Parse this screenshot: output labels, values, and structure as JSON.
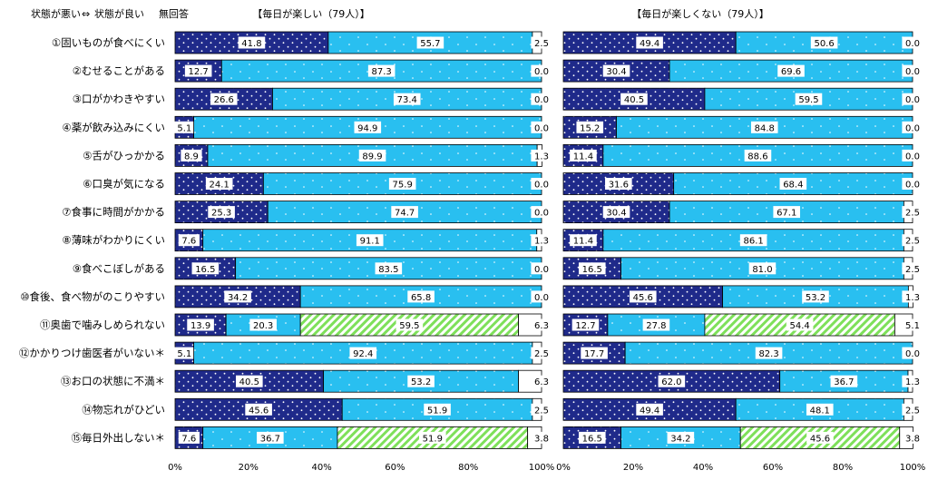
{
  "legend": {
    "label_bad": "状態が悪い",
    "arrow": "⇔",
    "label_good": "状態が良い",
    "label_noanswer": "無回答"
  },
  "colors": {
    "bad": "#1f2a8a",
    "good": "#29bff0",
    "third": "#7ee05a",
    "noanswer": "#ffffff",
    "border": "#000000"
  },
  "categories": [
    "①固いものが食べにくい",
    "②むせることがある",
    "③口がかわきやすい",
    "④薬が飲み込みにくい",
    "⑤舌がひっかかる",
    "⑥口臭が気になる",
    "⑦食事に時間がかかる",
    "⑧薄味がわかりにくい",
    "⑨食べこぼしがある",
    "⑩食後、食べ物がのこりやすい",
    "⑪奥歯で噛みしめられない",
    "⑫かかりつけ歯医者がいない＊",
    "⑬お口の状態に不満＊",
    "⑭物忘れがひどい",
    "⑮毎日外出しない＊"
  ],
  "chart_data": [
    {
      "type": "bar",
      "orientation": "horizontal",
      "stacked": true,
      "title": "【毎日が楽しい（79人）】",
      "xlim": [
        0,
        100
      ],
      "xticks": [
        "0%",
        "20%",
        "40%",
        "60%",
        "80%",
        "100%"
      ],
      "rows": [
        {
          "values": [
            41.8,
            55.7,
            2.5
          ],
          "labels": [
            "41.8",
            "55.7",
            "2.5"
          ]
        },
        {
          "values": [
            12.7,
            87.3,
            0.0
          ],
          "labels": [
            "12.7",
            "87.3",
            "0.0"
          ]
        },
        {
          "values": [
            26.6,
            73.4,
            0.0
          ],
          "labels": [
            "26.6",
            "73.4",
            "0.0"
          ]
        },
        {
          "values": [
            5.1,
            94.9,
            0.0
          ],
          "labels": [
            "5.1",
            "94.9",
            "0.0"
          ]
        },
        {
          "values": [
            8.9,
            89.9,
            1.3
          ],
          "labels": [
            "8.9",
            "89.9",
            "1.3"
          ]
        },
        {
          "values": [
            24.1,
            75.9,
            0.0
          ],
          "labels": [
            "24.1",
            "75.9",
            "0.0"
          ]
        },
        {
          "values": [
            25.3,
            74.7,
            0.0
          ],
          "labels": [
            "25.3",
            "74.7",
            "0.0"
          ]
        },
        {
          "values": [
            7.6,
            91.1,
            1.3
          ],
          "labels": [
            "7.6",
            "91.1",
            "1.3"
          ]
        },
        {
          "values": [
            16.5,
            83.5,
            0.0
          ],
          "labels": [
            "16.5",
            "83.5",
            "0.0"
          ]
        },
        {
          "values": [
            34.2,
            65.8,
            0.0
          ],
          "labels": [
            "34.2",
            "65.8",
            "0.0"
          ]
        },
        {
          "values": [
            13.9,
            20.3,
            59.5,
            6.3
          ],
          "labels": [
            "13.9",
            "20.3",
            "59.5",
            "6.3"
          ]
        },
        {
          "values": [
            5.1,
            92.4,
            2.5
          ],
          "labels": [
            "5.1",
            "92.4",
            "2.5"
          ]
        },
        {
          "values": [
            40.5,
            53.2,
            6.3
          ],
          "labels": [
            "40.5",
            "53.2",
            "6.3"
          ]
        },
        {
          "values": [
            45.6,
            51.9,
            2.5
          ],
          "labels": [
            "45.6",
            "51.9",
            "2.5"
          ]
        },
        {
          "values": [
            7.6,
            36.7,
            51.9,
            3.8
          ],
          "labels": [
            "7.6",
            "36.7",
            "51.9",
            "3.8"
          ]
        }
      ]
    },
    {
      "type": "bar",
      "orientation": "horizontal",
      "stacked": true,
      "title": "【毎日が楽しくない（79人）】",
      "xlim": [
        0,
        100
      ],
      "xticks": [
        "0%",
        "20%",
        "40%",
        "60%",
        "80%",
        "100%"
      ],
      "rows": [
        {
          "values": [
            49.4,
            50.6,
            0.0
          ],
          "labels": [
            "49.4",
            "50.6",
            "0.0"
          ]
        },
        {
          "values": [
            30.4,
            69.6,
            0.0
          ],
          "labels": [
            "30.4",
            "69.6",
            "0.0"
          ]
        },
        {
          "values": [
            40.5,
            59.5,
            0.0
          ],
          "labels": [
            "40.5",
            "59.5",
            "0.0"
          ]
        },
        {
          "values": [
            15.2,
            84.8,
            0.0
          ],
          "labels": [
            "15.2",
            "84.8",
            "0.0"
          ]
        },
        {
          "values": [
            11.4,
            88.6,
            0.0
          ],
          "labels": [
            "11.4",
            "88.6",
            "0.0"
          ]
        },
        {
          "values": [
            31.6,
            68.4,
            0.0
          ],
          "labels": [
            "31.6",
            "68.4",
            "0.0"
          ]
        },
        {
          "values": [
            30.4,
            67.1,
            2.5
          ],
          "labels": [
            "30.4",
            "67.1",
            "2.5"
          ]
        },
        {
          "values": [
            11.4,
            86.1,
            2.5
          ],
          "labels": [
            "11.4",
            "86.1",
            "2.5"
          ]
        },
        {
          "values": [
            16.5,
            81.0,
            2.5
          ],
          "labels": [
            "16.5",
            "81.0",
            "2.5"
          ]
        },
        {
          "values": [
            45.6,
            53.2,
            1.3
          ],
          "labels": [
            "45.6",
            "53.2",
            "1.3"
          ]
        },
        {
          "values": [
            12.7,
            27.8,
            54.4,
            5.1
          ],
          "labels": [
            "12.7",
            "27.8",
            "54.4",
            "5.1"
          ]
        },
        {
          "values": [
            17.7,
            82.3,
            0.0
          ],
          "labels": [
            "17.7",
            "82.3",
            "0.0"
          ]
        },
        {
          "values": [
            62.0,
            36.7,
            1.3
          ],
          "labels": [
            "62.0",
            "36.7",
            "1.3"
          ]
        },
        {
          "values": [
            49.4,
            48.1,
            2.5
          ],
          "labels": [
            "49.4",
            "48.1",
            "2.5"
          ]
        },
        {
          "values": [
            16.5,
            34.2,
            45.6,
            3.8
          ],
          "labels": [
            "16.5",
            "34.2",
            "45.6",
            "3.8"
          ]
        }
      ]
    }
  ]
}
